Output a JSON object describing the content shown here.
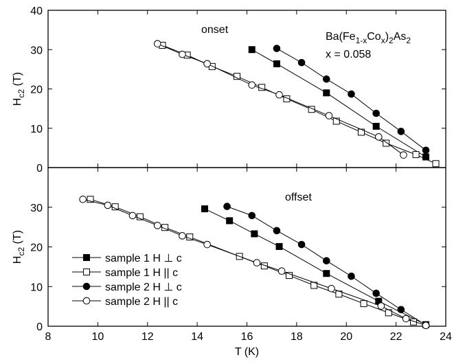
{
  "chart_data": [
    {
      "type": "scatter-line",
      "ylabel": [
        {
          "text": "H"
        },
        {
          "text": "c2",
          "sub": true
        },
        {
          "text": " (T)"
        }
      ],
      "annotations": [
        "onset"
      ],
      "formula": [
        {
          "text": "Ba(Fe"
        },
        {
          "text": "1-x",
          "sub": true
        },
        {
          "text": "Co"
        },
        {
          "text": "x",
          "sub": true
        },
        {
          "text": ")"
        },
        {
          "text": "2",
          "sub": true
        },
        {
          "text": "As"
        },
        {
          "text": "2",
          "sub": true
        }
      ],
      "composition": "x = 0.058",
      "xlim": [
        8,
        24
      ],
      "xticks": [
        8,
        10,
        12,
        14,
        16,
        18,
        20,
        22,
        24
      ],
      "ylim": [
        0,
        40
      ],
      "yticks": [
        0,
        10,
        20,
        30,
        40
      ],
      "series": [
        {
          "marker": "square",
          "filled": true,
          "x": [
            16.2,
            17.2,
            19.2,
            21.2,
            23.2
          ],
          "values": [
            30,
            26.4,
            19,
            10.5,
            2.7
          ]
        },
        {
          "marker": "square",
          "filled": false,
          "x": [
            12.6,
            13.6,
            14.6,
            15.6,
            16.6,
            17.6,
            18.6,
            19.6,
            20.6,
            21.6,
            22.8,
            23.6
          ],
          "values": [
            31.1,
            28.6,
            25.7,
            23.2,
            20.4,
            17.5,
            14.8,
            11.8,
            9.0,
            6.2,
            3.3,
            1.0
          ]
        },
        {
          "marker": "circle",
          "filled": true,
          "x": [
            17.2,
            18.2,
            19.2,
            20.2,
            21.2,
            22.2,
            23.2
          ],
          "values": [
            30.3,
            26.7,
            22.5,
            18.7,
            13.8,
            9.2,
            4.4
          ]
        },
        {
          "marker": "circle",
          "filled": false,
          "x": [
            12.4,
            13.4,
            14.4,
            16.2,
            17.3,
            19.3,
            21.3,
            22.3
          ],
          "values": [
            31.5,
            28.8,
            26.4,
            21,
            18.5,
            13.2,
            7.8,
            3.2
          ]
        }
      ]
    },
    {
      "type": "scatter-line",
      "ylabel": [
        {
          "text": "H"
        },
        {
          "text": "c2",
          "sub": true
        },
        {
          "text": " (T)"
        }
      ],
      "xlabel": "T (K)",
      "annotations": [
        "offset"
      ],
      "xlim": [
        8,
        24
      ],
      "xticks": [
        8,
        10,
        12,
        14,
        16,
        18,
        20,
        22,
        24
      ],
      "ylim": [
        0,
        40
      ],
      "yticks": [
        0,
        10,
        20,
        30
      ],
      "series": [
        {
          "name": "sample 1 H ⊥ c",
          "marker": "square",
          "filled": true,
          "x": [
            14.3,
            15.3,
            16.3,
            17.3,
            19.2,
            21.3,
            23.2
          ],
          "values": [
            29.6,
            26.6,
            23.3,
            20.1,
            13.3,
            6.3,
            0.4
          ]
        },
        {
          "name": "sample 1 H || c",
          "marker": "square",
          "filled": false,
          "x": [
            9.7,
            10.7,
            11.7,
            12.7,
            13.7,
            15.7,
            16.7,
            17.7,
            18.7,
            19.7,
            20.7,
            21.7,
            22.7
          ],
          "values": [
            32,
            30.1,
            27.6,
            24.9,
            22.5,
            17.6,
            15.2,
            12.8,
            10.3,
            8.1,
            5.7,
            3.4,
            1.1
          ]
        },
        {
          "name": "sample 2 H ⊥ c",
          "marker": "circle",
          "filled": true,
          "x": [
            15.2,
            16.2,
            17.2,
            18.2,
            19.2,
            20.2,
            21.2,
            22.2,
            23.2
          ],
          "values": [
            30.2,
            27.9,
            24.1,
            20.6,
            16.5,
            12.6,
            8.3,
            4.2,
            0.3
          ]
        },
        {
          "name": "sample 2 H || c",
          "marker": "circle",
          "filled": false,
          "x": [
            9.4,
            10.4,
            11.4,
            12.4,
            13.4,
            14.4,
            16.4,
            17.4,
            19.4,
            21.4,
            22.4,
            23.2
          ],
          "values": [
            32,
            30.5,
            27.9,
            25.4,
            22.8,
            20.6,
            16,
            13.9,
            9.5,
            5.1,
            1.9,
            0.2
          ]
        }
      ]
    }
  ]
}
